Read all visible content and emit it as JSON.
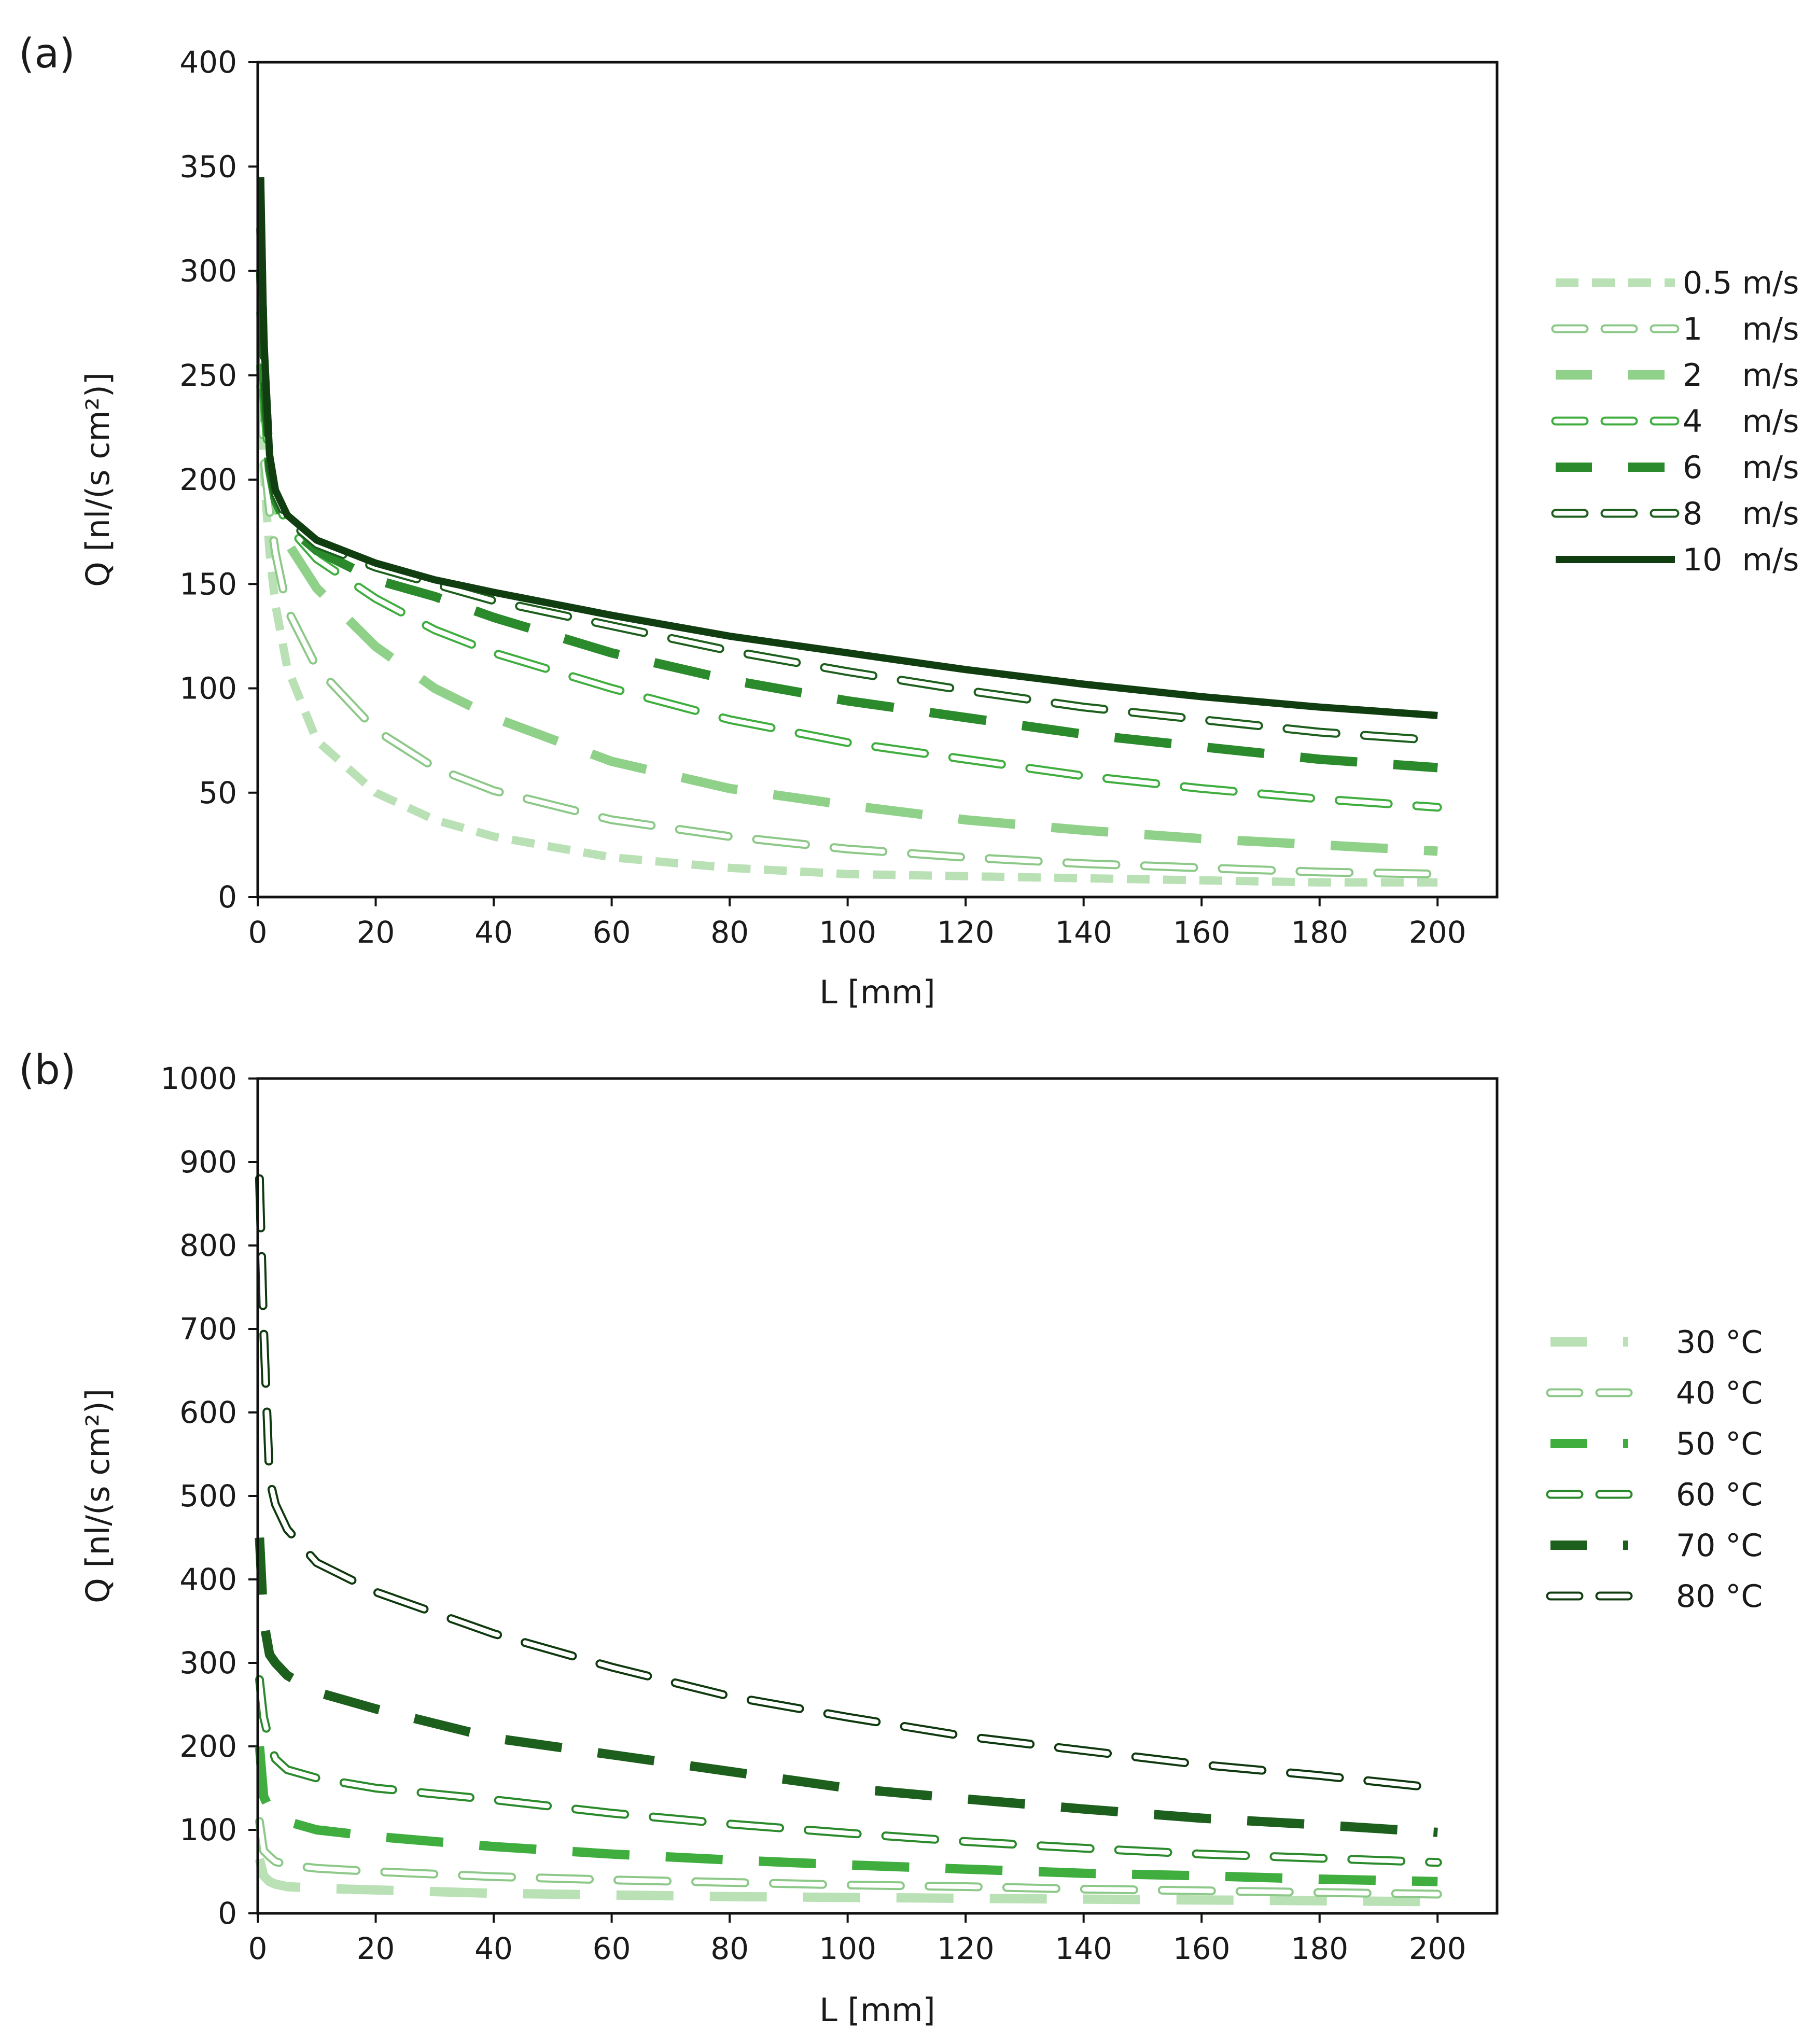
{
  "figure": {
    "panel_labels": [
      "(a)",
      "(b)"
    ]
  },
  "colors": {
    "c1": "#b9e1b5",
    "c2": "#90d18a",
    "c3": "#3fae3f",
    "c4": "#2b8a2b",
    "c5": "#1d5f1d",
    "c6": "#113e11",
    "outline": "#123f12"
  },
  "chart_data": [
    {
      "type": "line",
      "panel": "(a)",
      "xlabel": "L [mm]",
      "ylabel": "Q [nl/(s  cm²)]",
      "xlim": [
        0,
        200
      ],
      "ylim": [
        0,
        400
      ],
      "xticks": [
        0,
        20,
        40,
        60,
        80,
        100,
        120,
        140,
        160,
        180,
        200
      ],
      "yticks": [
        0,
        50,
        100,
        150,
        200,
        250,
        300,
        350,
        400
      ],
      "legend_position": "right",
      "x": [
        0.5,
        1,
        2,
        3,
        5,
        10,
        20,
        30,
        40,
        60,
        80,
        100,
        120,
        140,
        160,
        180,
        200
      ],
      "series": [
        {
          "name": "0.5 m/s",
          "style": "dash",
          "color": "c1",
          "values": [
            260,
            205,
            165,
            140,
            110,
            75,
            50,
            37,
            29,
            19,
            14,
            11,
            10,
            9,
            8,
            7,
            7
          ]
        },
        {
          "name": "1    m/s",
          "style": "hollow-dash",
          "color": "c1",
          "values": [
            245,
            212,
            185,
            165,
            138,
            110,
            80,
            62,
            51,
            37,
            29,
            23,
            19,
            16,
            14,
            12,
            11
          ]
        },
        {
          "name": "2    m/s",
          "style": "dash-wide",
          "color": "c2",
          "values": [
            255,
            230,
            205,
            190,
            170,
            148,
            120,
            100,
            86,
            65,
            52,
            44,
            37,
            32,
            28,
            25,
            22
          ]
        },
        {
          "name": "4    m/s",
          "style": "hollow-dash",
          "color": "c3",
          "values": [
            280,
            240,
            205,
            192,
            178,
            162,
            143,
            128,
            117,
            100,
            85,
            74,
            66,
            58,
            52,
            47,
            43
          ]
        },
        {
          "name": "6    m/s",
          "style": "dash-wide",
          "color": "c4",
          "values": [
            300,
            250,
            205,
            190,
            178,
            166,
            152,
            144,
            134,
            117,
            104,
            94,
            86,
            78,
            72,
            66,
            62
          ]
        },
        {
          "name": "8    m/s",
          "style": "hollow-dash",
          "color": "c5",
          "values": [
            320,
            260,
            208,
            193,
            181,
            169,
            158,
            150,
            142,
            130,
            118,
            108,
            99,
            91,
            85,
            79,
            75
          ]
        },
        {
          "name": "10  m/s",
          "style": "solid",
          "color": "c6",
          "values": [
            345,
            270,
            212,
            195,
            183,
            171,
            160,
            152,
            146,
            135,
            125,
            117,
            109,
            102,
            96,
            91,
            87
          ]
        }
      ]
    },
    {
      "type": "line",
      "panel": "(b)",
      "xlabel": "L [mm]",
      "ylabel": "Q [nl/(s  cm²)]",
      "xlim": [
        0,
        200
      ],
      "ylim": [
        0,
        1000
      ],
      "xticks": [
        0,
        20,
        40,
        60,
        80,
        100,
        120,
        140,
        160,
        180,
        200
      ],
      "yticks": [
        0,
        100,
        200,
        300,
        400,
        500,
        600,
        700,
        800,
        900,
        1000
      ],
      "legend_position": "right",
      "x": [
        0.3,
        1,
        2,
        3,
        5,
        10,
        20,
        40,
        60,
        80,
        100,
        120,
        140,
        160,
        180,
        200
      ],
      "series": [
        {
          "name": "30 °C",
          "style": "dash-wide",
          "color": "c1",
          "values": [
            65,
            45,
            38,
            35,
            32,
            30,
            28,
            24,
            22,
            20,
            19,
            18,
            17,
            16,
            15,
            14
          ]
        },
        {
          "name": "40 °C",
          "style": "hollow-dash",
          "color": "c1",
          "values": [
            110,
            75,
            68,
            62,
            58,
            54,
            50,
            44,
            40,
            37,
            34,
            32,
            29,
            27,
            25,
            23
          ]
        },
        {
          "name": "50 °C",
          "style": "dash-wide",
          "color": "c3",
          "values": [
            200,
            140,
            125,
            118,
            110,
            100,
            92,
            80,
            71,
            64,
            58,
            53,
            48,
            45,
            41,
            38
          ]
        },
        {
          "name": "60 °C",
          "style": "hollow-dash",
          "color": "c4",
          "values": [
            280,
            235,
            205,
            185,
            172,
            162,
            150,
            136,
            120,
            107,
            96,
            86,
            78,
            71,
            66,
            61
          ]
        },
        {
          "name": "70 °C",
          "style": "dash-wide",
          "color": "c5",
          "values": [
            450,
            350,
            310,
            300,
            285,
            265,
            245,
            210,
            190,
            170,
            150,
            137,
            125,
            114,
            106,
            97
          ]
        },
        {
          "name": "80 °C",
          "style": "hollow-dash",
          "color": "c6",
          "values": [
            880,
            700,
            520,
            490,
            460,
            420,
            385,
            335,
            295,
            260,
            235,
            212,
            195,
            178,
            165,
            150
          ]
        }
      ]
    }
  ]
}
